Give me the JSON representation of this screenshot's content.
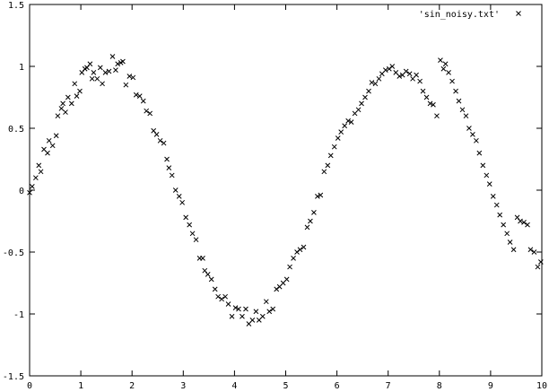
{
  "chart_data": {
    "type": "scatter",
    "title": "",
    "xlabel": "",
    "ylabel": "",
    "xlim": [
      0,
      10
    ],
    "ylim": [
      -1.5,
      1.5
    ],
    "x_ticks": [
      "0",
      "1",
      "2",
      "3",
      "4",
      "5",
      "6",
      "7",
      "8",
      "9",
      "10"
    ],
    "y_ticks": [
      "1.5",
      "1",
      "0.5",
      "0",
      "-0.5",
      "-1",
      "-1.5"
    ],
    "grid": false,
    "legend_position": "top-right",
    "series": [
      {
        "name": "'sin_noisy.txt'",
        "marker": "x",
        "color": "#000000",
        "points": [
          [
            0.0,
            -0.02
          ],
          [
            0.05,
            0.03
          ],
          [
            0.12,
            0.1
          ],
          [
            0.18,
            0.2
          ],
          [
            0.22,
            0.15
          ],
          [
            0.28,
            0.33
          ],
          [
            0.35,
            0.3
          ],
          [
            0.38,
            0.4
          ],
          [
            0.45,
            0.36
          ],
          [
            0.52,
            0.44
          ],
          [
            0.55,
            0.6
          ],
          [
            0.62,
            0.66
          ],
          [
            0.65,
            0.7
          ],
          [
            0.7,
            0.63
          ],
          [
            0.75,
            0.75
          ],
          [
            0.82,
            0.7
          ],
          [
            0.88,
            0.86
          ],
          [
            0.92,
            0.76
          ],
          [
            0.98,
            0.8
          ],
          [
            1.02,
            0.95
          ],
          [
            1.08,
            0.98
          ],
          [
            1.12,
            0.99
          ],
          [
            1.18,
            1.02
          ],
          [
            1.22,
            0.9
          ],
          [
            1.25,
            0.95
          ],
          [
            1.32,
            0.9
          ],
          [
            1.38,
            0.99
          ],
          [
            1.42,
            0.86
          ],
          [
            1.48,
            0.95
          ],
          [
            1.55,
            0.96
          ],
          [
            1.62,
            1.08
          ],
          [
            1.68,
            0.97
          ],
          [
            1.72,
            1.02
          ],
          [
            1.78,
            1.03
          ],
          [
            1.82,
            1.04
          ],
          [
            1.88,
            0.85
          ],
          [
            1.95,
            0.92
          ],
          [
            2.02,
            0.91
          ],
          [
            2.08,
            0.77
          ],
          [
            2.15,
            0.76
          ],
          [
            2.22,
            0.72
          ],
          [
            2.28,
            0.64
          ],
          [
            2.35,
            0.62
          ],
          [
            2.42,
            0.48
          ],
          [
            2.48,
            0.45
          ],
          [
            2.55,
            0.4
          ],
          [
            2.62,
            0.38
          ],
          [
            2.68,
            0.25
          ],
          [
            2.72,
            0.18
          ],
          [
            2.78,
            0.12
          ],
          [
            2.85,
            0.0
          ],
          [
            2.92,
            -0.05
          ],
          [
            2.98,
            -0.1
          ],
          [
            3.05,
            -0.22
          ],
          [
            3.12,
            -0.28
          ],
          [
            3.18,
            -0.35
          ],
          [
            3.25,
            -0.4
          ],
          [
            3.32,
            -0.55
          ],
          [
            3.38,
            -0.55
          ],
          [
            3.42,
            -0.65
          ],
          [
            3.48,
            -0.68
          ],
          [
            3.55,
            -0.72
          ],
          [
            3.62,
            -0.8
          ],
          [
            3.68,
            -0.86
          ],
          [
            3.75,
            -0.88
          ],
          [
            3.82,
            -0.86
          ],
          [
            3.88,
            -0.92
          ],
          [
            3.95,
            -1.02
          ],
          [
            4.02,
            -0.95
          ],
          [
            4.08,
            -0.96
          ],
          [
            4.15,
            -1.02
          ],
          [
            4.22,
            -0.96
          ],
          [
            4.28,
            -1.08
          ],
          [
            4.35,
            -1.05
          ],
          [
            4.42,
            -0.98
          ],
          [
            4.48,
            -1.05
          ],
          [
            4.55,
            -1.02
          ],
          [
            4.62,
            -0.9
          ],
          [
            4.68,
            -0.98
          ],
          [
            4.75,
            -0.96
          ],
          [
            4.82,
            -0.8
          ],
          [
            4.88,
            -0.78
          ],
          [
            4.95,
            -0.75
          ],
          [
            5.02,
            -0.72
          ],
          [
            5.08,
            -0.62
          ],
          [
            5.15,
            -0.55
          ],
          [
            5.22,
            -0.5
          ],
          [
            5.28,
            -0.48
          ],
          [
            5.35,
            -0.46
          ],
          [
            5.42,
            -0.3
          ],
          [
            5.48,
            -0.25
          ],
          [
            5.55,
            -0.18
          ],
          [
            5.62,
            -0.05
          ],
          [
            5.68,
            -0.04
          ],
          [
            5.75,
            0.15
          ],
          [
            5.82,
            0.2
          ],
          [
            5.88,
            0.28
          ],
          [
            5.95,
            0.35
          ],
          [
            6.02,
            0.42
          ],
          [
            6.08,
            0.47
          ],
          [
            6.15,
            0.52
          ],
          [
            6.22,
            0.56
          ],
          [
            6.28,
            0.55
          ],
          [
            6.35,
            0.62
          ],
          [
            6.42,
            0.65
          ],
          [
            6.48,
            0.7
          ],
          [
            6.55,
            0.75
          ],
          [
            6.62,
            0.8
          ],
          [
            6.68,
            0.87
          ],
          [
            6.75,
            0.86
          ],
          [
            6.82,
            0.9
          ],
          [
            6.88,
            0.94
          ],
          [
            6.95,
            0.97
          ],
          [
            7.02,
            0.98
          ],
          [
            7.08,
            1.0
          ],
          [
            7.15,
            0.95
          ],
          [
            7.22,
            0.92
          ],
          [
            7.28,
            0.93
          ],
          [
            7.35,
            0.96
          ],
          [
            7.42,
            0.94
          ],
          [
            7.48,
            0.9
          ],
          [
            7.55,
            0.93
          ],
          [
            7.62,
            0.88
          ],
          [
            7.68,
            0.8
          ],
          [
            7.75,
            0.75
          ],
          [
            7.82,
            0.7
          ],
          [
            7.88,
            0.69
          ],
          [
            7.95,
            0.6
          ],
          [
            8.02,
            1.05
          ],
          [
            8.08,
            0.98
          ],
          [
            8.12,
            1.02
          ],
          [
            8.18,
            0.95
          ],
          [
            8.25,
            0.88
          ],
          [
            8.32,
            0.8
          ],
          [
            8.38,
            0.72
          ],
          [
            8.45,
            0.65
          ],
          [
            8.52,
            0.6
          ],
          [
            8.58,
            0.5
          ],
          [
            8.65,
            0.45
          ],
          [
            8.72,
            0.4
          ],
          [
            8.78,
            0.3
          ],
          [
            8.85,
            0.2
          ],
          [
            8.92,
            0.12
          ],
          [
            8.98,
            0.05
          ],
          [
            9.05,
            -0.05
          ],
          [
            9.12,
            -0.12
          ],
          [
            9.18,
            -0.2
          ],
          [
            9.25,
            -0.28
          ],
          [
            9.32,
            -0.35
          ],
          [
            9.38,
            -0.42
          ],
          [
            9.45,
            -0.48
          ],
          [
            9.52,
            -0.22
          ],
          [
            9.58,
            -0.25
          ],
          [
            9.65,
            -0.26
          ],
          [
            9.72,
            -0.28
          ],
          [
            9.78,
            -0.48
          ],
          [
            9.85,
            -0.5
          ],
          [
            9.92,
            -0.62
          ],
          [
            9.98,
            -0.58
          ]
        ]
      }
    ]
  }
}
